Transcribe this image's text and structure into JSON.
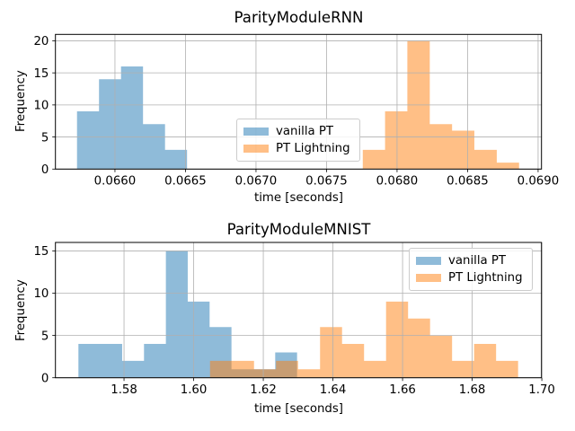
{
  "figure": {
    "background": "#ffffff",
    "grid_color": "#b0b0b0",
    "spine_color": "#000000"
  },
  "chart_data": [
    {
      "type": "histogram",
      "title": "ParityModuleRNN",
      "xlabel": "time [seconds]",
      "ylabel": "Frequency",
      "xlim": [
        0.065578,
        0.069024
      ],
      "ylim": [
        0,
        21
      ],
      "grid": true,
      "xticks": {
        "values": [
          0.066,
          0.0665,
          0.067,
          0.0675,
          0.068,
          0.0685,
          0.069
        ],
        "labels": [
          "0.0660",
          "0.0665",
          "0.0670",
          "0.0675",
          "0.0680",
          "0.0685",
          "0.0690"
        ]
      },
      "yticks": {
        "values": [
          0,
          5,
          10,
          15,
          20
        ],
        "labels": [
          "0",
          "5",
          "10",
          "15",
          "20"
        ]
      },
      "legend": {
        "position": "center",
        "labels": [
          "vanilla PT",
          "PT Lightning"
        ]
      },
      "series": [
        {
          "name": "vanilla PT",
          "color": "#1f77b4",
          "alpha": 0.5,
          "bin_edges": [
            0.065731,
            0.065887,
            0.066043,
            0.066199,
            0.066355,
            0.066511
          ],
          "counts": [
            9,
            14,
            16,
            7,
            3
          ]
        },
        {
          "name": "PT Lightning",
          "color": "#ff7f0e",
          "alpha": 0.5,
          "bin_edges": [
            0.067757,
            0.067915,
            0.068073,
            0.068232,
            0.06839,
            0.068548,
            0.068707,
            0.068865
          ],
          "counts": [
            3,
            9,
            20,
            7,
            6,
            3,
            1
          ]
        }
      ]
    },
    {
      "type": "histogram",
      "title": "ParityModuleMNIST",
      "xlabel": "time [seconds]",
      "ylabel": "Frequency",
      "xlim": [
        1.5603,
        1.6999
      ],
      "ylim": [
        0,
        16
      ],
      "grid": true,
      "xticks": {
        "values": [
          1.58,
          1.6,
          1.62,
          1.64,
          1.66,
          1.68,
          1.7
        ],
        "labels": [
          "1.58",
          "1.60",
          "1.62",
          "1.64",
          "1.66",
          "1.68",
          "1.70"
        ]
      },
      "yticks": {
        "values": [
          0,
          5,
          10,
          15
        ],
        "labels": [
          "0",
          "5",
          "10",
          "15"
        ]
      },
      "legend": {
        "position": "upper right",
        "labels": [
          "vanilla PT",
          "PT Lightning"
        ]
      },
      "series": [
        {
          "name": "vanilla PT",
          "color": "#1f77b4",
          "alpha": 0.5,
          "bin_edges": [
            1.5669,
            1.57318,
            1.57946,
            1.58574,
            1.59202,
            1.5983,
            1.60458,
            1.61086,
            1.61714,
            1.62342,
            1.6297
          ],
          "counts": [
            4,
            4,
            2,
            4,
            15,
            9,
            6,
            1,
            1,
            3
          ]
        },
        {
          "name": "PT Lightning",
          "color": "#ff7f0e",
          "alpha": 0.5,
          "bin_edges": [
            1.6047,
            1.61102,
            1.61734,
            1.62366,
            1.62998,
            1.6363,
            1.64262,
            1.64894,
            1.65526,
            1.66158,
            1.6679,
            1.67422,
            1.68054,
            1.68686,
            1.69318
          ],
          "counts": [
            2,
            2,
            1,
            2,
            1,
            6,
            4,
            2,
            9,
            7,
            5,
            2,
            4,
            2
          ]
        }
      ]
    }
  ]
}
